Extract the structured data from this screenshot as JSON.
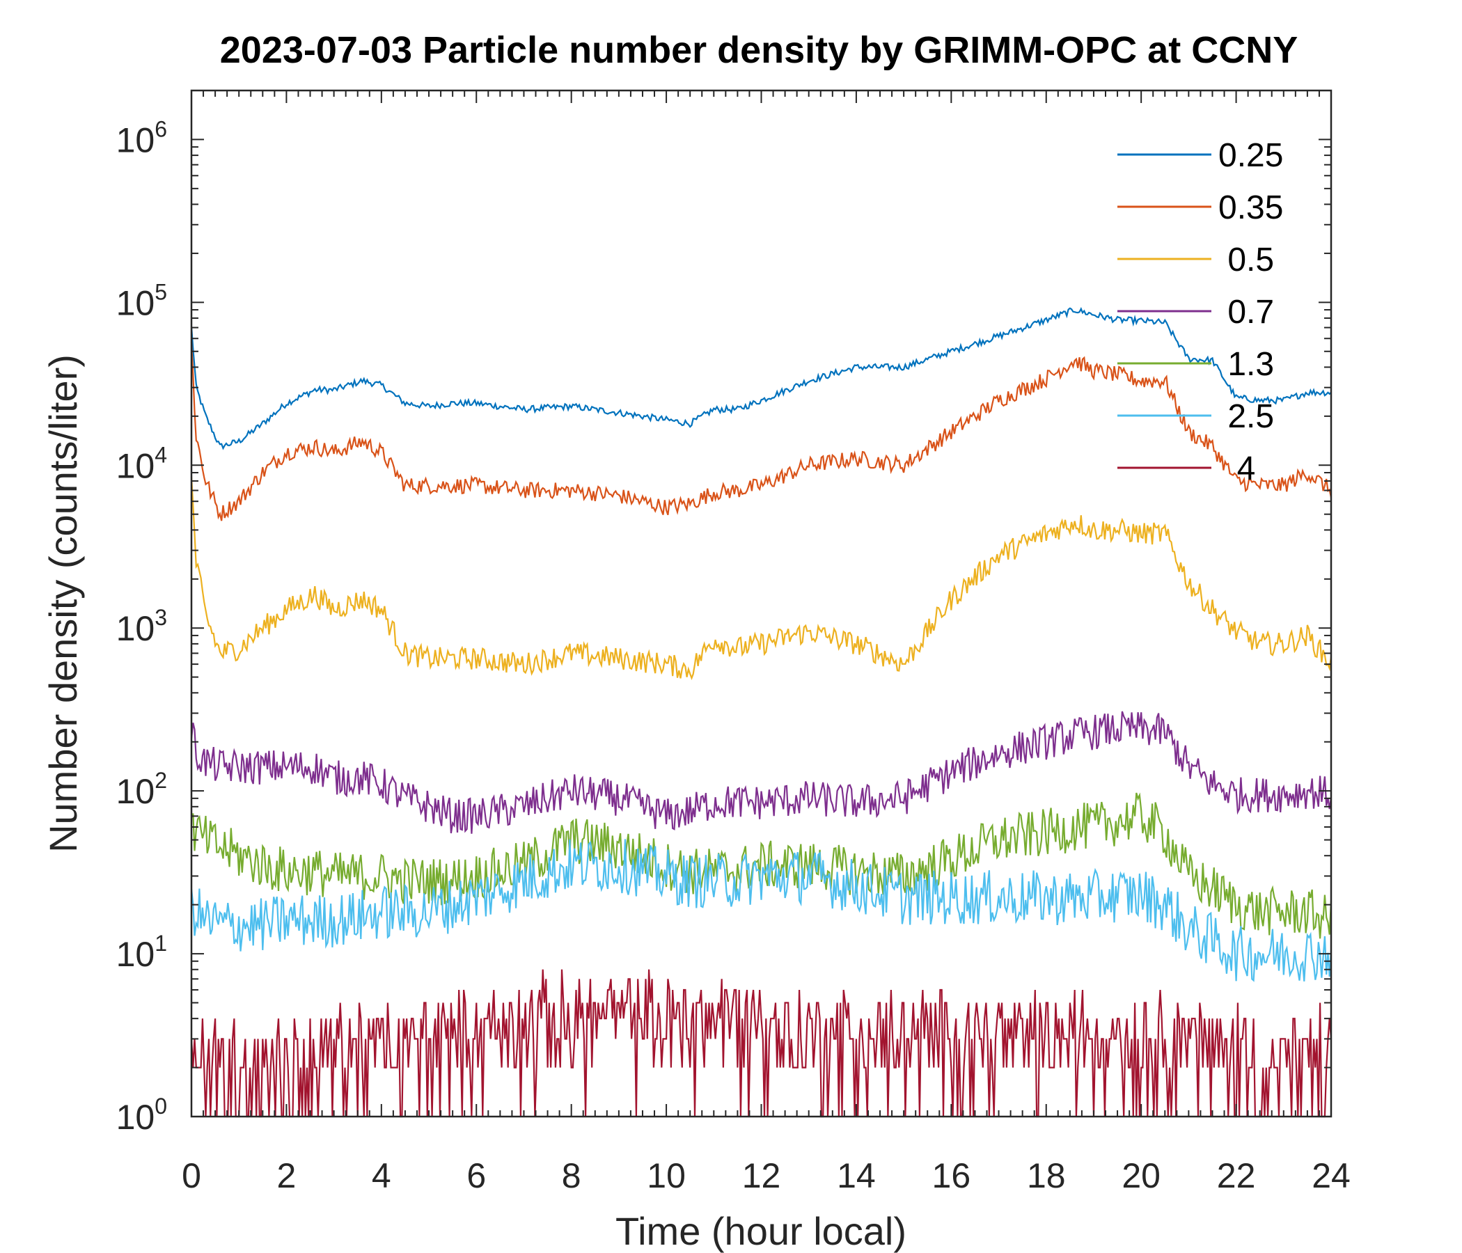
{
  "chart_data": {
    "type": "line",
    "title": "2023-07-03 Particle number density by GRIMM-OPC at CCNY",
    "xlabel": "Time (hour local)",
    "ylabel": "Number density (counts/liter)",
    "xlim": [
      0,
      24
    ],
    "ylim": [
      1,
      2000000
    ],
    "yscale": "log",
    "xticks": [
      "0",
      "2",
      "4",
      "6",
      "8",
      "10",
      "12",
      "14",
      "16",
      "18",
      "20",
      "22",
      "24"
    ],
    "yticks": [
      {
        "base": "10",
        "exp": "0"
      },
      {
        "base": "10",
        "exp": "1"
      },
      {
        "base": "10",
        "exp": "2"
      },
      {
        "base": "10",
        "exp": "3"
      },
      {
        "base": "10",
        "exp": "4"
      },
      {
        "base": "10",
        "exp": "5"
      },
      {
        "base": "10",
        "exp": "6"
      }
    ],
    "legend_position": "top-right",
    "grid": false,
    "x": [
      0,
      0.1,
      0.3,
      0.6,
      1,
      1.5,
      2,
      2.6,
      3,
      3.6,
      4,
      4.5,
      5,
      5.5,
      6,
      7,
      8,
      9,
      10,
      10.5,
      11,
      11.5,
      12,
      13,
      14,
      15,
      16,
      17,
      18,
      18.6,
      19,
      19.5,
      20,
      20.5,
      21,
      21.5,
      22,
      22.5,
      23,
      23.5,
      24
    ],
    "series": [
      {
        "name": "0.25",
        "color": "#0072BD",
        "noise": 0.02,
        "values": [
          70000,
          30000,
          20000,
          13000,
          14000,
          18000,
          24000,
          29000,
          29000,
          33000,
          31000,
          24000,
          23000,
          24000,
          24000,
          22000,
          23000,
          21000,
          19000,
          18000,
          22000,
          22000,
          25000,
          33000,
          40000,
          40000,
          50000,
          62000,
          78000,
          90000,
          84000,
          78000,
          77000,
          75000,
          45000,
          44000,
          26000,
          25000,
          25000,
          28000,
          28000
        ]
      },
      {
        "name": "0.35",
        "color": "#D95319",
        "noise": 0.05,
        "values": [
          55000,
          15000,
          8000,
          5000,
          6000,
          9000,
          12000,
          13000,
          12000,
          14000,
          12000,
          7500,
          7500,
          7500,
          7500,
          7000,
          7000,
          6500,
          5500,
          5800,
          6800,
          7000,
          7500,
          10000,
          11000,
          10000,
          16000,
          25000,
          34000,
          44000,
          38000,
          36000,
          33000,
          33000,
          16000,
          13000,
          8000,
          7500,
          7500,
          9000,
          7000
        ]
      },
      {
        "name": " 0.5",
        "color": "#EDB120",
        "noise": 0.07,
        "values": [
          8000,
          2500,
          1200,
          700,
          750,
          1000,
          1300,
          1600,
          1300,
          1500,
          1300,
          700,
          650,
          650,
          650,
          600,
          700,
          650,
          600,
          550,
          850,
          750,
          800,
          950,
          800,
          600,
          1500,
          2800,
          3800,
          4500,
          4000,
          4000,
          3800,
          3800,
          1900,
          1300,
          950,
          800,
          800,
          900,
          600
        ]
      },
      {
        "name": " 0.7",
        "color": "#7E2F8E",
        "noise": 0.11,
        "values": [
          250,
          170,
          150,
          140,
          140,
          140,
          140,
          140,
          120,
          120,
          110,
          90,
          80,
          70,
          70,
          80,
          100,
          90,
          70,
          75,
          85,
          85,
          85,
          90,
          85,
          90,
          130,
          170,
          200,
          220,
          230,
          240,
          240,
          230,
          140,
          110,
          95,
          95,
          95,
          100,
          95
        ]
      },
      {
        "name": " 1.3",
        "color": "#77AC30",
        "noise": 0.15,
        "values": [
          60,
          55,
          50,
          45,
          40,
          35,
          32,
          32,
          30,
          30,
          30,
          28,
          28,
          28,
          30,
          35,
          50,
          45,
          35,
          32,
          32,
          33,
          35,
          35,
          32,
          30,
          38,
          50,
          55,
          60,
          60,
          65,
          70,
          55,
          30,
          25,
          20,
          18,
          18,
          18,
          16
        ]
      },
      {
        "name": " 2.5",
        "color": "#4DBEEE",
        "noise": 0.17,
        "values": [
          20,
          18,
          16,
          15,
          15,
          15,
          16,
          16,
          16,
          17,
          18,
          18,
          18,
          20,
          22,
          28,
          35,
          35,
          30,
          28,
          28,
          28,
          30,
          30,
          26,
          22,
          22,
          22,
          22,
          22,
          22,
          23,
          23,
          20,
          14,
          12,
          10,
          10,
          10,
          10,
          10
        ]
      },
      {
        "name": "  4",
        "color": "#A2142F",
        "noise": 0.25,
        "values": [
          2,
          2,
          2,
          2,
          2,
          2,
          2,
          2,
          2.5,
          2.5,
          2.5,
          2.5,
          3,
          3,
          3,
          3.5,
          4,
          4,
          4,
          4,
          4,
          4,
          3.5,
          3,
          3,
          3,
          3,
          3,
          3,
          3,
          3,
          3,
          3,
          3,
          3,
          2.5,
          2.5,
          2,
          2,
          2,
          2
        ]
      }
    ]
  }
}
